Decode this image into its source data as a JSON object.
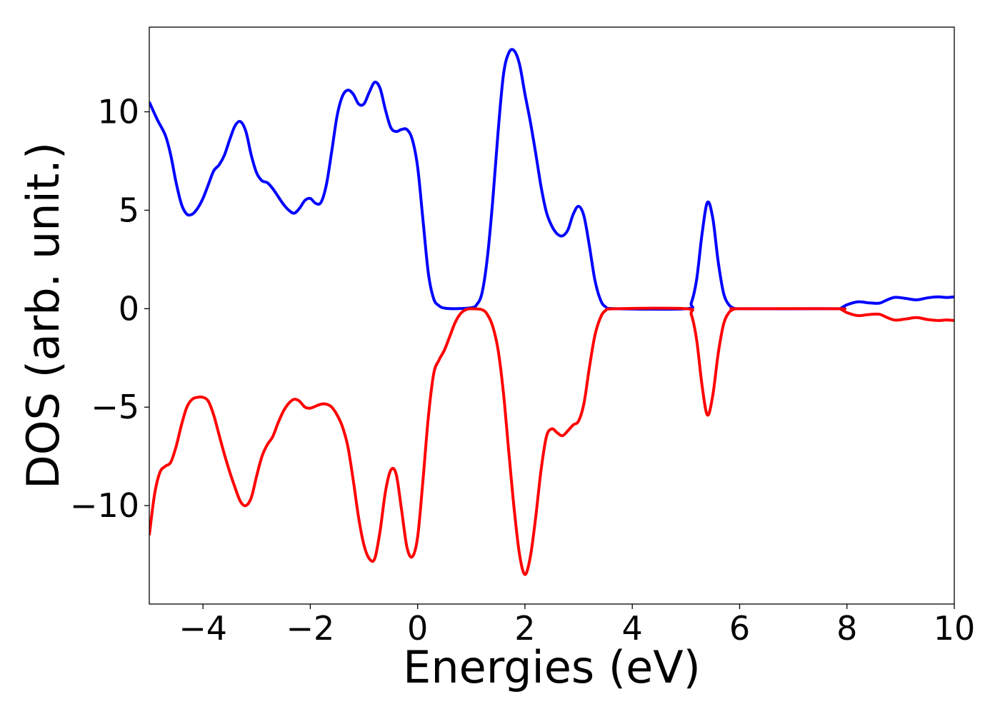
{
  "chart_data": {
    "type": "line",
    "title": "",
    "xlabel": "Energies (eV)",
    "ylabel": "DOS (arb. unit.)",
    "xlim": [
      -5,
      10
    ],
    "ylim": [
      -15,
      14.3
    ],
    "grid": false,
    "legend": "none",
    "x_ticks": [
      -4,
      -2,
      0,
      2,
      4,
      6,
      8,
      10
    ],
    "x_tick_labels": [
      "−4",
      "−2",
      "0",
      "2",
      "4",
      "6",
      "8",
      "10"
    ],
    "y_ticks": [
      -10,
      -5,
      0,
      5,
      10
    ],
    "y_tick_labels": [
      "−10",
      "−5",
      "0",
      "5",
      "10"
    ],
    "series": [
      {
        "color": "#0000ff",
        "points": [
          [
            -5.0,
            10.5
          ],
          [
            -4.85,
            9.6
          ],
          [
            -4.7,
            8.8
          ],
          [
            -4.6,
            7.8
          ],
          [
            -4.5,
            6.4
          ],
          [
            -4.4,
            5.3
          ],
          [
            -4.3,
            4.8
          ],
          [
            -4.2,
            4.8
          ],
          [
            -4.1,
            5.1
          ],
          [
            -4.0,
            5.6
          ],
          [
            -3.9,
            6.3
          ],
          [
            -3.8,
            7.0
          ],
          [
            -3.7,
            7.3
          ],
          [
            -3.6,
            7.8
          ],
          [
            -3.5,
            8.6
          ],
          [
            -3.4,
            9.3
          ],
          [
            -3.3,
            9.5
          ],
          [
            -3.2,
            9.0
          ],
          [
            -3.1,
            7.8
          ],
          [
            -3.0,
            6.9
          ],
          [
            -2.9,
            6.5
          ],
          [
            -2.8,
            6.4
          ],
          [
            -2.7,
            6.1
          ],
          [
            -2.6,
            5.7
          ],
          [
            -2.5,
            5.3
          ],
          [
            -2.4,
            5.0
          ],
          [
            -2.3,
            4.85
          ],
          [
            -2.2,
            5.1
          ],
          [
            -2.1,
            5.5
          ],
          [
            -2.0,
            5.6
          ],
          [
            -1.9,
            5.35
          ],
          [
            -1.8,
            5.4
          ],
          [
            -1.7,
            6.3
          ],
          [
            -1.6,
            8.0
          ],
          [
            -1.5,
            9.8
          ],
          [
            -1.4,
            10.8
          ],
          [
            -1.3,
            11.1
          ],
          [
            -1.2,
            10.9
          ],
          [
            -1.1,
            10.4
          ],
          [
            -1.0,
            10.4
          ],
          [
            -0.9,
            11.0
          ],
          [
            -0.8,
            11.5
          ],
          [
            -0.7,
            11.2
          ],
          [
            -0.6,
            10.1
          ],
          [
            -0.5,
            9.2
          ],
          [
            -0.4,
            9.0
          ],
          [
            -0.3,
            9.1
          ],
          [
            -0.2,
            9.1
          ],
          [
            -0.1,
            8.6
          ],
          [
            0.0,
            7.2
          ],
          [
            0.1,
            4.5
          ],
          [
            0.2,
            1.8
          ],
          [
            0.3,
            0.5
          ],
          [
            0.4,
            0.15
          ],
          [
            0.5,
            0.03
          ],
          [
            0.7,
            0.0
          ],
          [
            1.0,
            0.05
          ],
          [
            1.1,
            0.2
          ],
          [
            1.2,
            0.8
          ],
          [
            1.3,
            2.6
          ],
          [
            1.4,
            5.5
          ],
          [
            1.5,
            9.0
          ],
          [
            1.6,
            11.9
          ],
          [
            1.7,
            13.0
          ],
          [
            1.8,
            13.1
          ],
          [
            1.9,
            12.4
          ],
          [
            2.0,
            10.9
          ],
          [
            2.1,
            9.5
          ],
          [
            2.2,
            7.9
          ],
          [
            2.3,
            6.2
          ],
          [
            2.4,
            4.9
          ],
          [
            2.5,
            4.2
          ],
          [
            2.6,
            3.8
          ],
          [
            2.7,
            3.7
          ],
          [
            2.8,
            4.0
          ],
          [
            2.9,
            4.8
          ],
          [
            3.0,
            5.2
          ],
          [
            3.1,
            4.7
          ],
          [
            3.2,
            3.2
          ],
          [
            3.3,
            1.5
          ],
          [
            3.4,
            0.5
          ],
          [
            3.5,
            0.1
          ],
          [
            3.7,
            0.0
          ],
          [
            5.0,
            0.0
          ],
          [
            5.1,
            0.3
          ],
          [
            5.2,
            1.5
          ],
          [
            5.3,
            3.8
          ],
          [
            5.4,
            5.4
          ],
          [
            5.5,
            4.6
          ],
          [
            5.6,
            2.4
          ],
          [
            5.7,
            0.8
          ],
          [
            5.8,
            0.2
          ],
          [
            5.9,
            0.02
          ],
          [
            6.0,
            0.0
          ],
          [
            7.8,
            0.0
          ],
          [
            7.9,
            0.05
          ],
          [
            8.0,
            0.2
          ],
          [
            8.2,
            0.35
          ],
          [
            8.4,
            0.3
          ],
          [
            8.6,
            0.28
          ],
          [
            8.75,
            0.45
          ],
          [
            8.9,
            0.58
          ],
          [
            9.1,
            0.52
          ],
          [
            9.3,
            0.45
          ],
          [
            9.5,
            0.55
          ],
          [
            9.7,
            0.6
          ],
          [
            9.85,
            0.57
          ],
          [
            10.0,
            0.6
          ]
        ]
      },
      {
        "color": "#ff0000",
        "points": [
          [
            -5.0,
            -11.5
          ],
          [
            -4.9,
            -9.4
          ],
          [
            -4.8,
            -8.3
          ],
          [
            -4.7,
            -8.0
          ],
          [
            -4.6,
            -7.8
          ],
          [
            -4.5,
            -7.0
          ],
          [
            -4.4,
            -5.9
          ],
          [
            -4.3,
            -5.0
          ],
          [
            -4.2,
            -4.6
          ],
          [
            -4.1,
            -4.5
          ],
          [
            -4.0,
            -4.5
          ],
          [
            -3.9,
            -4.7
          ],
          [
            -3.8,
            -5.4
          ],
          [
            -3.7,
            -6.4
          ],
          [
            -3.6,
            -7.4
          ],
          [
            -3.5,
            -8.3
          ],
          [
            -3.4,
            -9.1
          ],
          [
            -3.3,
            -9.8
          ],
          [
            -3.2,
            -10.0
          ],
          [
            -3.1,
            -9.6
          ],
          [
            -3.0,
            -8.5
          ],
          [
            -2.9,
            -7.5
          ],
          [
            -2.8,
            -6.9
          ],
          [
            -2.7,
            -6.5
          ],
          [
            -2.6,
            -5.8
          ],
          [
            -2.5,
            -5.2
          ],
          [
            -2.4,
            -4.8
          ],
          [
            -2.3,
            -4.6
          ],
          [
            -2.2,
            -4.7
          ],
          [
            -2.1,
            -5.0
          ],
          [
            -2.0,
            -5.05
          ],
          [
            -1.9,
            -4.95
          ],
          [
            -1.8,
            -4.85
          ],
          [
            -1.7,
            -4.85
          ],
          [
            -1.6,
            -5.0
          ],
          [
            -1.5,
            -5.4
          ],
          [
            -1.4,
            -6.0
          ],
          [
            -1.3,
            -7.0
          ],
          [
            -1.2,
            -8.7
          ],
          [
            -1.1,
            -10.6
          ],
          [
            -1.0,
            -12.0
          ],
          [
            -0.9,
            -12.7
          ],
          [
            -0.8,
            -12.7
          ],
          [
            -0.7,
            -11.3
          ],
          [
            -0.6,
            -9.3
          ],
          [
            -0.5,
            -8.2
          ],
          [
            -0.4,
            -8.4
          ],
          [
            -0.3,
            -10.2
          ],
          [
            -0.2,
            -12.1
          ],
          [
            -0.1,
            -12.6
          ],
          [
            0.0,
            -11.6
          ],
          [
            0.1,
            -8.7
          ],
          [
            0.2,
            -5.5
          ],
          [
            0.3,
            -3.3
          ],
          [
            0.4,
            -2.6
          ],
          [
            0.5,
            -2.1
          ],
          [
            0.6,
            -1.4
          ],
          [
            0.7,
            -0.7
          ],
          [
            0.8,
            -0.25
          ],
          [
            0.9,
            -0.05
          ],
          [
            1.0,
            0.0
          ],
          [
            1.2,
            -0.05
          ],
          [
            1.3,
            -0.3
          ],
          [
            1.4,
            -0.9
          ],
          [
            1.5,
            -2.1
          ],
          [
            1.6,
            -4.3
          ],
          [
            1.7,
            -7.3
          ],
          [
            1.8,
            -10.2
          ],
          [
            1.9,
            -12.5
          ],
          [
            2.0,
            -13.5
          ],
          [
            2.1,
            -12.6
          ],
          [
            2.2,
            -10.6
          ],
          [
            2.3,
            -8.2
          ],
          [
            2.4,
            -6.5
          ],
          [
            2.5,
            -6.1
          ],
          [
            2.6,
            -6.3
          ],
          [
            2.7,
            -6.45
          ],
          [
            2.8,
            -6.2
          ],
          [
            2.9,
            -5.9
          ],
          [
            3.0,
            -5.7
          ],
          [
            3.1,
            -4.8
          ],
          [
            3.2,
            -3.0
          ],
          [
            3.3,
            -1.4
          ],
          [
            3.4,
            -0.5
          ],
          [
            3.5,
            -0.1
          ],
          [
            3.7,
            0.0
          ],
          [
            5.0,
            0.0
          ],
          [
            5.1,
            -0.3
          ],
          [
            5.2,
            -1.6
          ],
          [
            5.3,
            -3.9
          ],
          [
            5.4,
            -5.4
          ],
          [
            5.5,
            -4.4
          ],
          [
            5.6,
            -2.3
          ],
          [
            5.7,
            -0.8
          ],
          [
            5.8,
            -0.2
          ],
          [
            5.9,
            -0.02
          ],
          [
            6.0,
            0.0
          ],
          [
            7.8,
            0.0
          ],
          [
            7.9,
            -0.05
          ],
          [
            8.0,
            -0.2
          ],
          [
            8.2,
            -0.35
          ],
          [
            8.4,
            -0.3
          ],
          [
            8.6,
            -0.28
          ],
          [
            8.75,
            -0.45
          ],
          [
            8.9,
            -0.58
          ],
          [
            9.1,
            -0.52
          ],
          [
            9.3,
            -0.45
          ],
          [
            9.5,
            -0.55
          ],
          [
            9.7,
            -0.6
          ],
          [
            9.85,
            -0.57
          ],
          [
            10.0,
            -0.6
          ]
        ]
      }
    ]
  }
}
